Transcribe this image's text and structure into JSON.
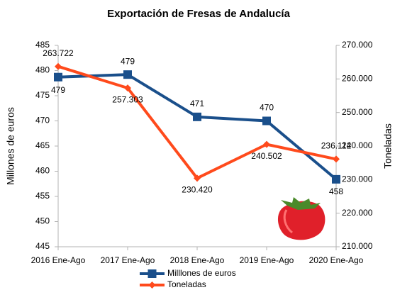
{
  "chart_data": {
    "type": "line",
    "title": "Exportación de Fresas de Andalucía",
    "ylabel": "Millones de euros",
    "y2label": "Toneladas",
    "categories": [
      "2016 Ene-Ago",
      "2017 Ene-Ago",
      "2018 Ene-Ago",
      "2019 Ene-Ago",
      "2020 Ene-Ago"
    ],
    "ylim": [
      445,
      485
    ],
    "yticks": [
      445,
      450,
      455,
      460,
      465,
      470,
      475,
      480,
      485
    ],
    "y2lim": [
      210000,
      270000
    ],
    "y2ticks": [
      {
        "value": 210000,
        "label": "210.000"
      },
      {
        "value": 220000,
        "label": "220.000"
      },
      {
        "value": 230000,
        "label": "230.000"
      },
      {
        "value": 240000,
        "label": "240.000"
      },
      {
        "value": 250000,
        "label": "250.000"
      },
      {
        "value": 260000,
        "label": "260.000"
      },
      {
        "value": 270000,
        "label": "270.000"
      }
    ],
    "grid": false,
    "series": [
      {
        "name": "Milllones de euros",
        "color": "#1a4f8b",
        "marker": "square",
        "values": [
          478.7,
          479.2,
          470.8,
          470.0,
          458.4
        ],
        "value_labels": [
          "479",
          "479",
          "471",
          "470",
          "458"
        ]
      },
      {
        "name": "Toneladas",
        "color": "#ff4a1c",
        "marker": "diamond",
        "axis": "y2",
        "values": [
          263722,
          257303,
          230420,
          240502,
          236112
        ],
        "value_labels": [
          "263.722",
          "257.303",
          "230.420",
          "240.502",
          "236.112"
        ]
      }
    ]
  }
}
